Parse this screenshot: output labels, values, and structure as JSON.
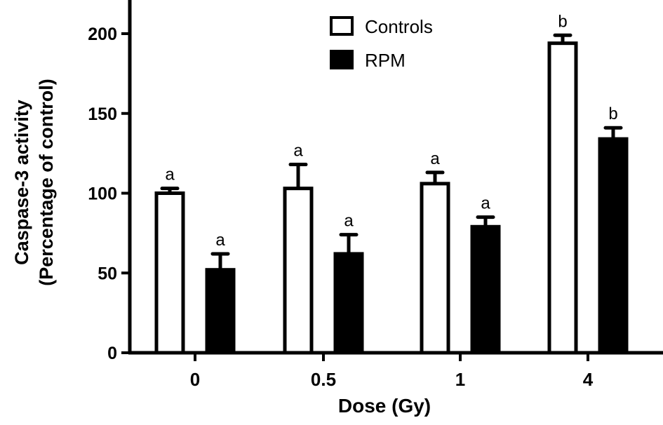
{
  "chart_data": {
    "type": "bar",
    "title": "",
    "xlabel": "Dose (Gy)",
    "ylabel_lines": [
      "Caspase-3 activity",
      "(Percentage of control)"
    ],
    "categories": [
      "0",
      "0.5",
      "1",
      "4"
    ],
    "ylim": [
      0,
      220
    ],
    "yticks": [
      0,
      50,
      100,
      150,
      200
    ],
    "grid": false,
    "legend_position": "top-center",
    "series": [
      {
        "name": "Controls",
        "fill": "#ffffff",
        "stroke": "#000000",
        "values": [
          100,
          103,
          106,
          194
        ],
        "errors": [
          3,
          15,
          7,
          5
        ],
        "annotations": [
          "a",
          "a",
          "a",
          "b"
        ]
      },
      {
        "name": "RPM",
        "fill": "#000000",
        "stroke": "#000000",
        "values": [
          52,
          62,
          79,
          134
        ],
        "errors": [
          10,
          12,
          6,
          7
        ],
        "annotations": [
          "a",
          "a",
          "a",
          "b"
        ]
      }
    ]
  }
}
